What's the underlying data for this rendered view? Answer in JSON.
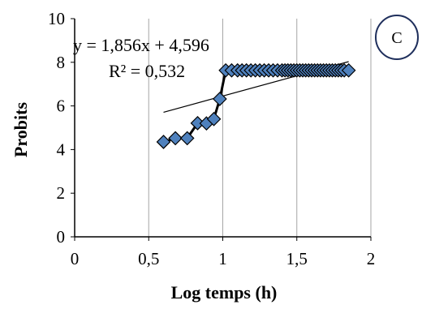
{
  "chart_data": {
    "type": "scatter",
    "xlabel": "Log temps (h)",
    "ylabel": "Probits",
    "xlim": [
      0,
      2
    ],
    "ylim": [
      0,
      10
    ],
    "x_ticks": [
      0,
      0.5,
      1,
      1.5,
      2
    ],
    "x_tick_labels": [
      "0",
      "0,5",
      "1",
      "1,5",
      "2"
    ],
    "y_ticks": [
      0,
      2,
      4,
      6,
      8,
      10
    ],
    "y_tick_labels": [
      "0",
      "2",
      "4",
      "6",
      "8",
      "10"
    ],
    "grid": "vertical",
    "panel_label": "C",
    "marker": "diamond",
    "series": [
      {
        "color": "#4f81bd",
        "connected": true,
        "points": [
          [
            0.6,
            4.35
          ],
          [
            0.68,
            4.52
          ],
          [
            0.76,
            4.52
          ],
          [
            0.83,
            5.21
          ],
          [
            0.89,
            5.2
          ],
          [
            0.94,
            5.4
          ],
          [
            0.98,
            6.32
          ],
          [
            1.02,
            7.63
          ],
          [
            1.06,
            7.63
          ],
          [
            1.1,
            7.63
          ],
          [
            1.13,
            7.63
          ],
          [
            1.16,
            7.63
          ],
          [
            1.19,
            7.63
          ],
          [
            1.22,
            7.63
          ],
          [
            1.25,
            7.63
          ],
          [
            1.28,
            7.63
          ],
          [
            1.31,
            7.63
          ],
          [
            1.34,
            7.63
          ],
          [
            1.37,
            7.63
          ],
          [
            1.4,
            7.63
          ],
          [
            1.42,
            7.63
          ],
          [
            1.44,
            7.63
          ],
          [
            1.46,
            7.63
          ],
          [
            1.48,
            7.63
          ],
          [
            1.5,
            7.63
          ],
          [
            1.52,
            7.63
          ],
          [
            1.54,
            7.63
          ],
          [
            1.56,
            7.63
          ],
          [
            1.58,
            7.63
          ],
          [
            1.6,
            7.63
          ],
          [
            1.62,
            7.63
          ],
          [
            1.64,
            7.63
          ],
          [
            1.66,
            7.63
          ],
          [
            1.68,
            7.63
          ],
          [
            1.7,
            7.63
          ],
          [
            1.72,
            7.63
          ],
          [
            1.74,
            7.63
          ],
          [
            1.76,
            7.63
          ],
          [
            1.78,
            7.63
          ],
          [
            1.8,
            7.63
          ],
          [
            1.82,
            7.63
          ],
          [
            1.85,
            7.63
          ]
        ]
      }
    ],
    "trendline": {
      "type": "linear",
      "slope": 1.856,
      "intercept": 4.596,
      "x_range": [
        0.6,
        1.85
      ],
      "equation_label": "y = 1,856x + 4,596",
      "r2_label": "R² = 0,532"
    }
  }
}
